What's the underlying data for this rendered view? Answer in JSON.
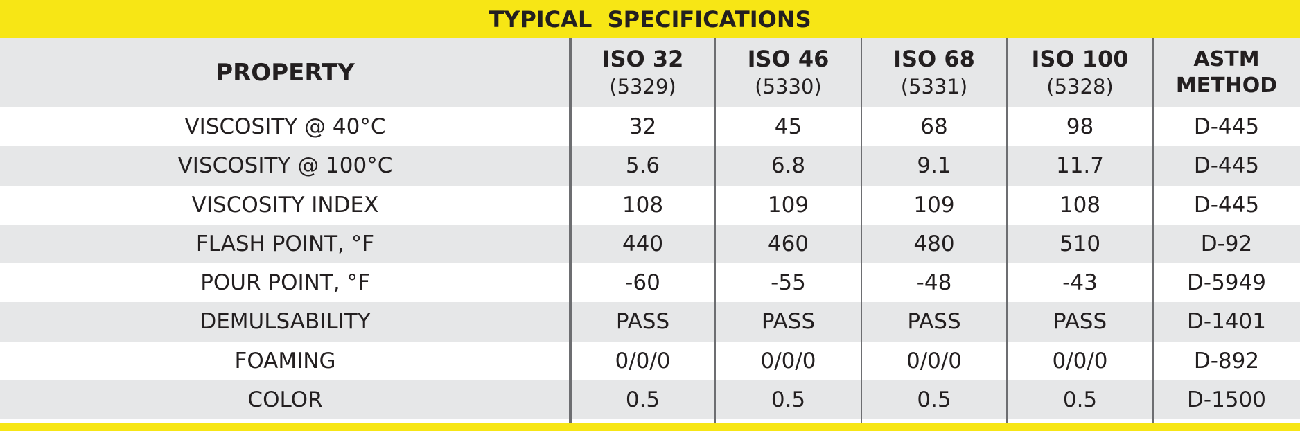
{
  "title": "TYPICAL  SPECIFICATIONS",
  "header": {
    "property": "PROPERTY",
    "grades": [
      {
        "name": "ISO 32",
        "code": "(5329)"
      },
      {
        "name": "ISO 46",
        "code": "(5330)"
      },
      {
        "name": "ISO 68",
        "code": "(5331)"
      },
      {
        "name": "ISO 100",
        "code": "(5328)"
      }
    ],
    "method": [
      "ASTM",
      "METHOD"
    ]
  },
  "rows": [
    [
      "VISCOSITY @ 40°C",
      "32",
      "45",
      "68",
      "98",
      "D-445"
    ],
    [
      "VISCOSITY @ 100°C",
      "5.6",
      "6.8",
      "9.1",
      "11.7",
      "D-445"
    ],
    [
      "VISCOSITY INDEX",
      "108",
      "109",
      "109",
      "108",
      "D-445"
    ],
    [
      "FLASH POINT, °F",
      "440",
      "460",
      "480",
      "510",
      "D-92"
    ],
    [
      "POUR POINT, °F",
      "-60",
      "-55",
      "-48",
      "-43",
      "D-5949"
    ],
    [
      "DEMULSABILITY",
      "PASS",
      "PASS",
      "PASS",
      "PASS",
      "D-1401"
    ],
    [
      "FOAMING",
      "0/0/0",
      "0/0/0",
      "0/0/0",
      "0/0/0",
      "D-892"
    ],
    [
      "COLOR",
      "0.5",
      "0.5",
      "0.5",
      "0.5",
      "D-1500"
    ]
  ]
}
